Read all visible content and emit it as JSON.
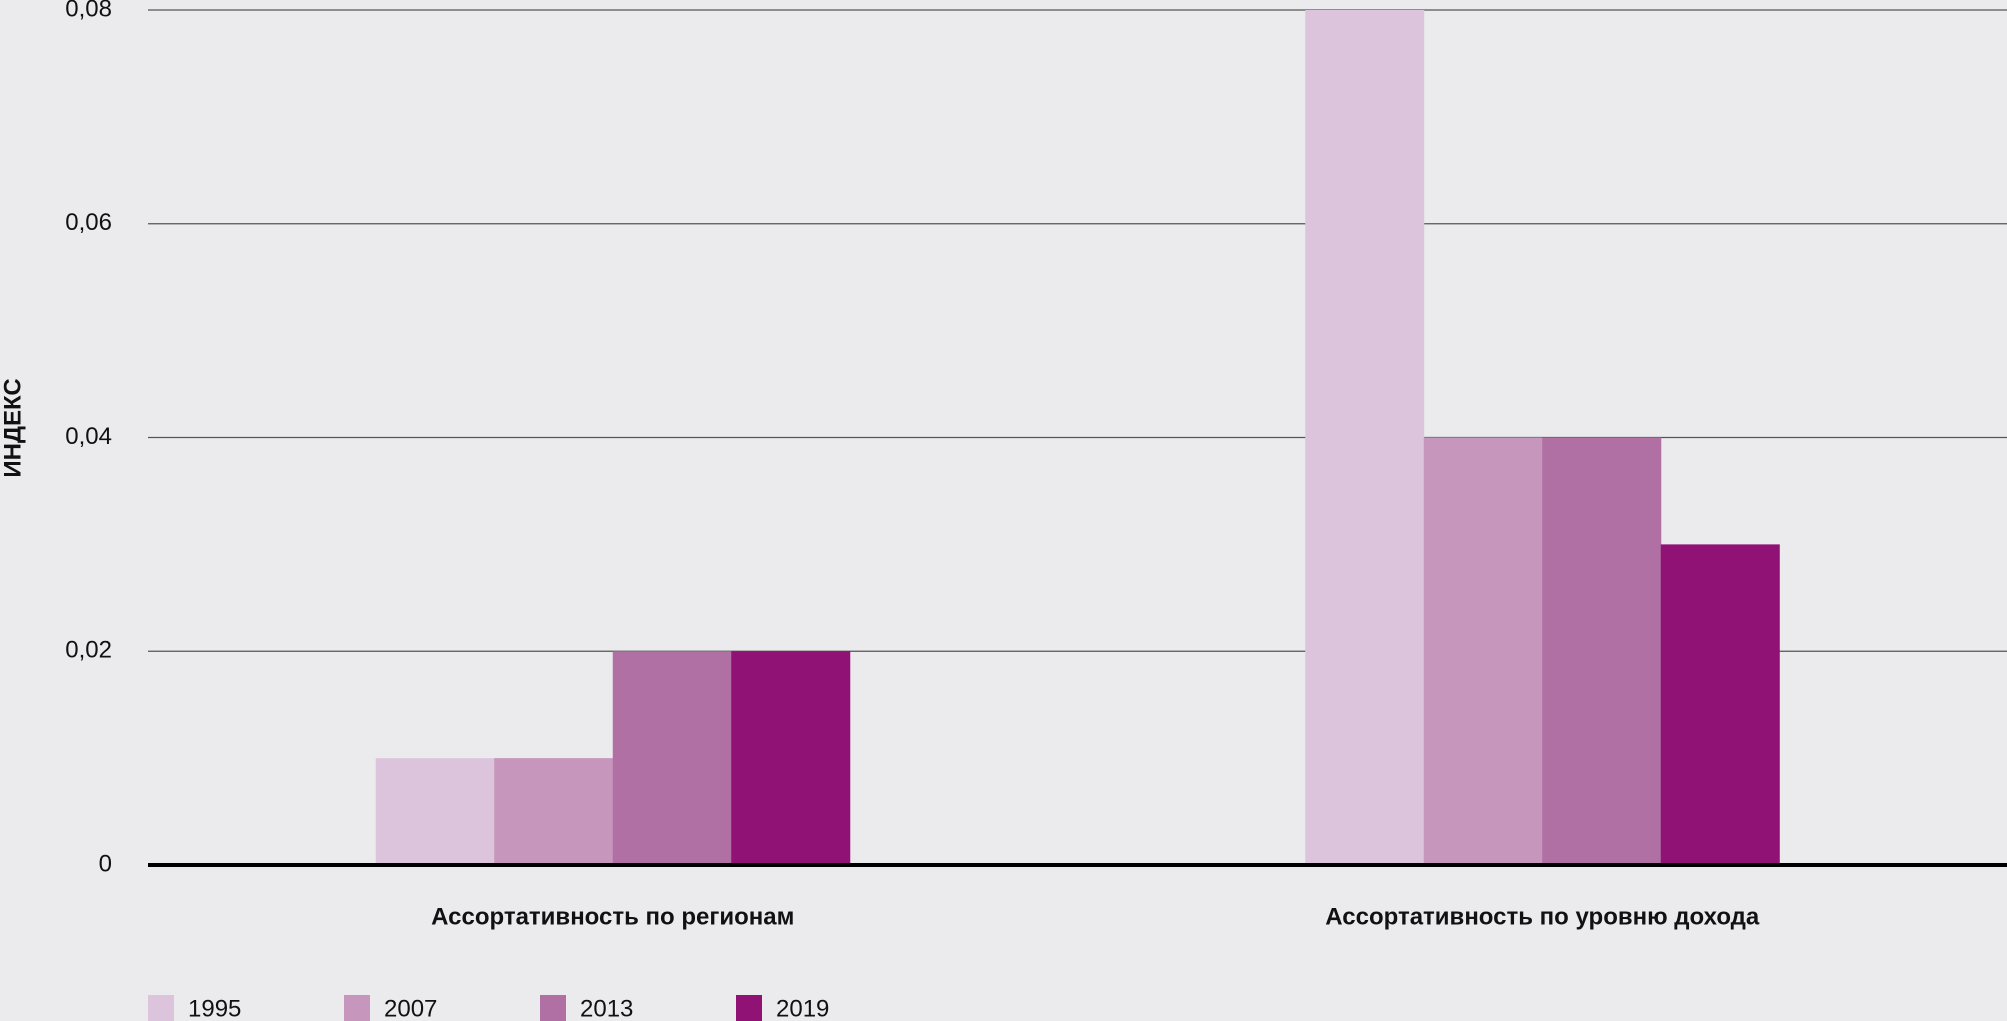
{
  "chart_data": {
    "type": "bar",
    "y_label": "ИНДЕКС",
    "categories": [
      "Ассортативность по регионам",
      "Ассортативность по уровню дохода"
    ],
    "series": [
      {
        "name": "1995",
        "color": "#dcc5dc",
        "values": [
          0.01,
          0.08
        ]
      },
      {
        "name": "2007",
        "color": "#c796bd",
        "values": [
          0.01,
          0.04
        ]
      },
      {
        "name": "2013",
        "color": "#b070a3",
        "values": [
          0.02,
          0.04
        ]
      },
      {
        "name": "2019",
        "color": "#8f1274",
        "values": [
          0.02,
          0.03
        ]
      }
    ],
    "ylim": [
      0,
      0.08
    ],
    "yticks": [
      0,
      {
        "value": 0.02,
        "label": "0,02"
      },
      {
        "value": 0.04,
        "label": "0,04"
      },
      {
        "value": 0.06,
        "label": "0,06"
      },
      {
        "value": 0.08,
        "label": "0,08"
      }
    ],
    "grid": true,
    "legend": "bottom-left"
  }
}
